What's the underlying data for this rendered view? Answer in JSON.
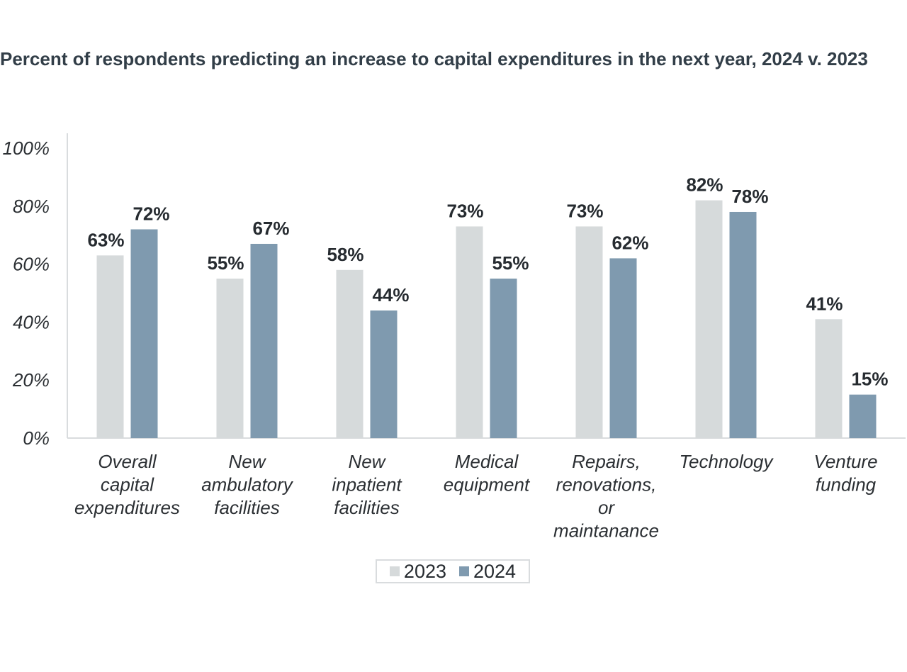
{
  "chart_data": {
    "type": "bar",
    "title": "Percent of respondents predicting an increase to capital expenditures in the next year, 2024 v. 2023",
    "xlabel": "",
    "ylabel": "",
    "ylim": [
      0,
      100
    ],
    "yticks": [
      0,
      20,
      40,
      60,
      80,
      100
    ],
    "ytick_labels": [
      "0%",
      "20%",
      "40%",
      "60%",
      "80%",
      "100%"
    ],
    "grid": false,
    "legend_position": "bottom",
    "categories": [
      [
        "Overall",
        "capital",
        "expenditures"
      ],
      [
        "New",
        "ambulatory",
        "facilities"
      ],
      [
        "New",
        "inpatient",
        "facilities"
      ],
      [
        "Medical",
        "equipment"
      ],
      [
        "Repairs,",
        "renovations,",
        "or",
        "maintanance"
      ],
      [
        "Technology"
      ],
      [
        "Venture",
        "funding"
      ]
    ],
    "series": [
      {
        "name": "2023",
        "color": "#d6dadb",
        "values": [
          63,
          55,
          58,
          73,
          73,
          82,
          41
        ],
        "labels": [
          "63%",
          "55%",
          "58%",
          "73%",
          "73%",
          "82%",
          "41%"
        ]
      },
      {
        "name": "2024",
        "color": "#7f9aaf",
        "values": [
          72,
          67,
          44,
          55,
          62,
          78,
          15
        ],
        "labels": [
          "72%",
          "67%",
          "44%",
          "55%",
          "62%",
          "78%",
          "15%"
        ]
      }
    ]
  }
}
